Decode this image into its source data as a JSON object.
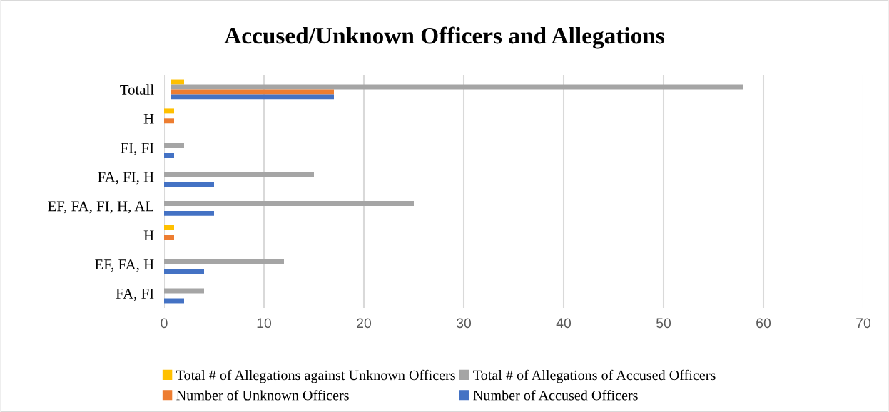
{
  "chart_data": {
    "type": "bar",
    "orientation": "horizontal",
    "title": "Accused/Unknown Officers and Allegations",
    "categories": [
      "Totall",
      "H",
      "FI, FI",
      "FA, FI, H",
      "EF, FA, FI, H, AL",
      "H",
      "EF, FA, H",
      "FA, FI"
    ],
    "series": [
      {
        "name": "Total # of Allegations against Unknown Officers",
        "color": "#ffc000",
        "values": [
          1.3,
          1,
          null,
          null,
          null,
          1,
          null,
          null
        ],
        "base": [
          0.7,
          0,
          null,
          null,
          null,
          0,
          null,
          null
        ]
      },
      {
        "name": "Total # of Allegations of Accused Officers",
        "color": "#a5a5a5",
        "values": [
          57.3,
          null,
          2,
          15,
          25,
          null,
          12,
          4
        ],
        "base": [
          0.7,
          null,
          0,
          0,
          0,
          null,
          0,
          0
        ]
      },
      {
        "name": "Number of Unknown Officers",
        "color": "#ed7d31",
        "values": [
          16.3,
          1,
          null,
          null,
          null,
          1,
          null,
          null
        ],
        "base": [
          0.7,
          0,
          null,
          null,
          null,
          0,
          null,
          null
        ]
      },
      {
        "name": "Number of Accused Officers",
        "color": "#4472c4",
        "values": [
          16.3,
          null,
          1,
          5,
          5,
          null,
          4,
          2
        ],
        "base": [
          0.7,
          null,
          0,
          0,
          0,
          null,
          0,
          0
        ]
      }
    ],
    "xlim": [
      0,
      70
    ],
    "xticks": [
      0,
      10,
      20,
      30,
      40,
      50,
      60,
      70
    ],
    "grid": "x",
    "legend": "bottom"
  }
}
